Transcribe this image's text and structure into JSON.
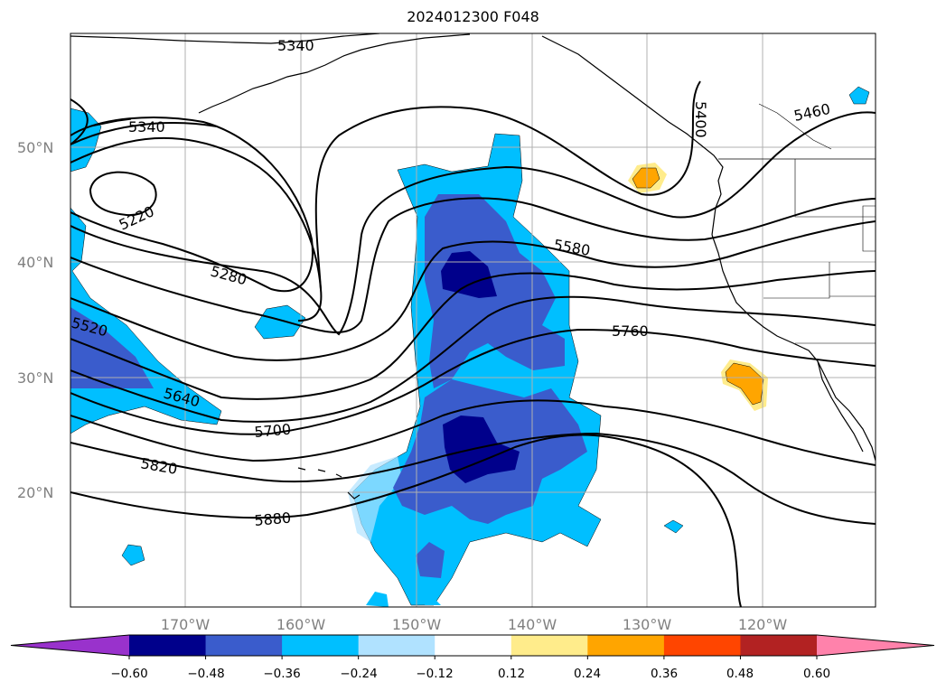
{
  "title": "2024012300 F048",
  "map": {
    "lat_labels": [
      "50°N",
      "40°N",
      "30°N",
      "20°N"
    ],
    "lon_labels": [
      "170°W",
      "160°W",
      "150°W",
      "140°W",
      "130°W",
      "120°W"
    ],
    "gridlines": true,
    "contour_labels": [
      "5340",
      "5340",
      "5220",
      "5280",
      "5520",
      "5640",
      "5700",
      "5820",
      "5880",
      "5760",
      "5580",
      "5400",
      "5460"
    ],
    "colors": {
      "dark_blue": "#00008b",
      "mid_blue": "#3a5ccc",
      "light_blue": "#00bfff",
      "pale_blue": "#b0e2ff",
      "pale_yellow": "#ffec8b",
      "orange": "#ffa500",
      "coast": "#000000",
      "grid": "#b0b0b0"
    }
  },
  "colorbar": {
    "ticks": [
      "−0.60",
      "−0.48",
      "−0.36",
      "−0.24",
      "−0.12",
      "0.12",
      "0.24",
      "0.36",
      "0.48",
      "0.60"
    ],
    "colors": [
      "#9932cc",
      "#00008b",
      "#3a5ccc",
      "#00bfff",
      "#b0e2ff",
      "#ffffff",
      "#ffec8b",
      "#ffa500",
      "#ff4500",
      "#b22222",
      "#ff82ab"
    ]
  }
}
